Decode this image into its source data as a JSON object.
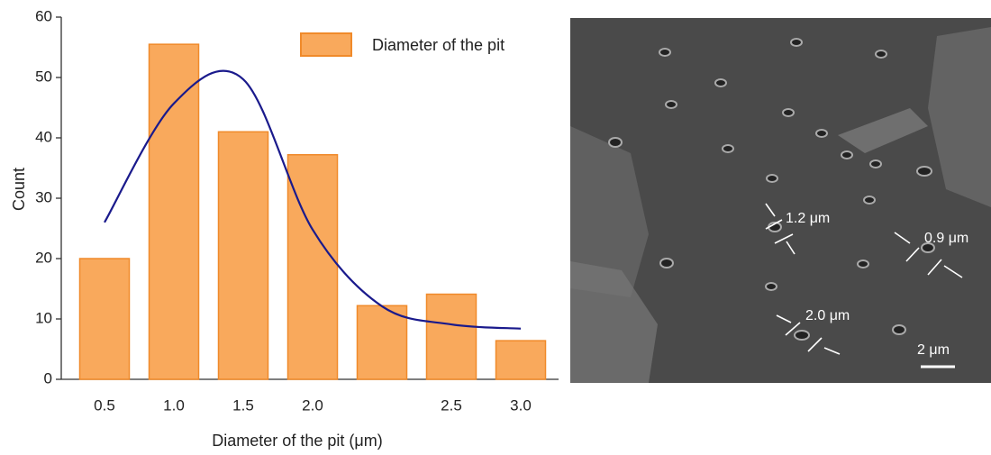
{
  "chart_data": {
    "type": "bar",
    "x_label": "Diameter of the pit (μm)",
    "y_label": "Count",
    "categories": [
      "0.5",
      "1.0",
      "1.5",
      "2.0",
      null,
      "2.5",
      "3.0"
    ],
    "series": [
      {
        "name": "Diameter of the pit",
        "type": "bar",
        "color": "#f9a95c",
        "edgecolor": "#f08a2a",
        "values": [
          20,
          55.5,
          41,
          37.2,
          12.2,
          14.1,
          6.4
        ]
      },
      {
        "type": "line",
        "color": "#1a1a8c",
        "values": [
          26,
          45.7,
          49.7,
          24.8,
          12.1,
          9.1,
          8.4
        ]
      }
    ],
    "ylim": [
      0,
      60
    ],
    "yticks": [
      0,
      10,
      20,
      30,
      40,
      50,
      60
    ],
    "grid": false,
    "legend": "upper right"
  },
  "image": {
    "annotations": [
      "1.2 μm",
      "0.9 μm",
      "2.0 μm"
    ],
    "scale_bar": "2 μm"
  }
}
